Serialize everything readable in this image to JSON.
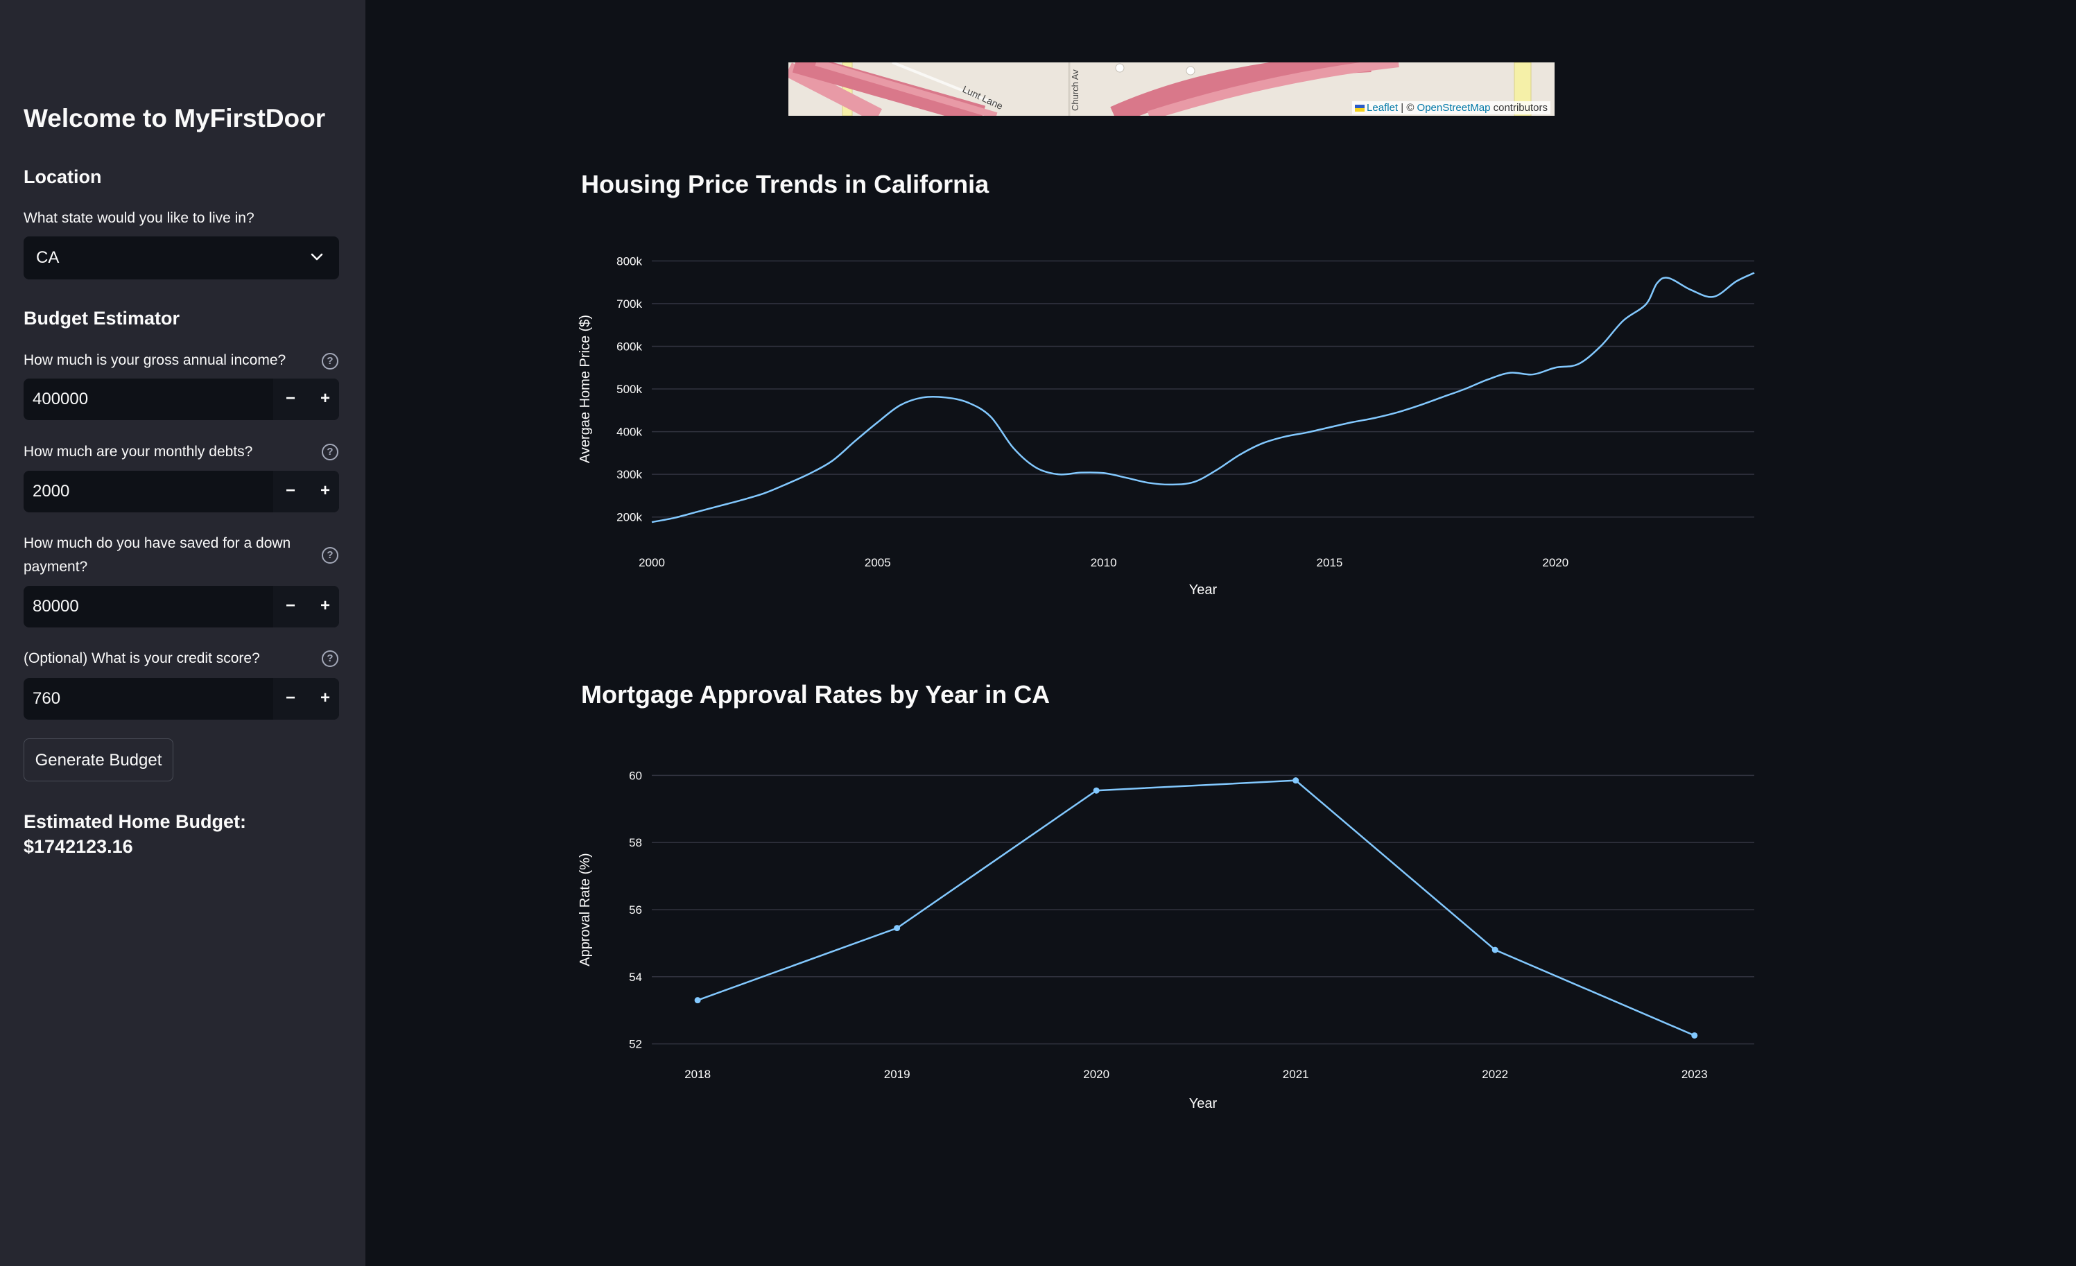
{
  "sidebar": {
    "title": "Welcome to MyFirstDoor",
    "location_heading": "Location",
    "state_label": "What state would you like to live in?",
    "state_value": "CA",
    "budget_heading": "Budget Estimator",
    "income_label": "How much is your gross annual income?",
    "income_value": "400000",
    "debts_label": "How much are your monthly debts?",
    "debts_value": "2000",
    "down_label": "How much do you have saved for a down payment?",
    "down_value": "80000",
    "credit_label": "(Optional) What is your credit score?",
    "credit_value": "760",
    "minus_label": "−",
    "plus_label": "+",
    "help_glyph": "?",
    "generate_label": "Generate Budget",
    "budget_result": "Estimated Home Budget: $1742123.16"
  },
  "map": {
    "street_1": "Lunt Lane",
    "street_2": "Church Av",
    "attrib_leaflet": "Leaflet",
    "attrib_sep": " | © ",
    "attrib_osm": "OpenStreetMap",
    "attrib_contrib": " contributors"
  },
  "colors": {
    "line": "#83c9ff",
    "grid": "#31333f",
    "sidebar_bg": "#262730",
    "main_bg": "#0e1117"
  },
  "chart_data": [
    {
      "type": "line",
      "title": "Housing Price Trends in California",
      "xlabel": "Year",
      "ylabel": "Avergae Home Price ($)",
      "xlim": [
        2000,
        2024.4
      ],
      "ylim": [
        180000,
        820000
      ],
      "x_ticks": [
        2000,
        2005,
        2010,
        2015,
        2020
      ],
      "y_ticks": [
        200000,
        300000,
        400000,
        500000,
        600000,
        700000,
        800000
      ],
      "y_tick_labels": [
        "200k",
        "300k",
        "400k",
        "500k",
        "600k",
        "700k",
        "800k"
      ],
      "x": [
        2000.0,
        2000.5,
        2001.0,
        2001.5,
        2002.0,
        2002.5,
        2003.0,
        2003.5,
        2004.0,
        2004.5,
        2005.0,
        2005.5,
        2006.0,
        2006.5,
        2007.0,
        2007.5,
        2008.0,
        2008.5,
        2009.0,
        2009.5,
        2010.0,
        2010.5,
        2011.0,
        2011.5,
        2012.0,
        2012.5,
        2013.0,
        2013.5,
        2014.0,
        2014.5,
        2015.0,
        2015.5,
        2016.0,
        2016.5,
        2017.0,
        2017.5,
        2018.0,
        2018.5,
        2019.0,
        2019.5,
        2020.0,
        2020.5,
        2021.0,
        2021.5,
        2022.0,
        2022.25,
        2022.5,
        2023.0,
        2023.5,
        2024.0,
        2024.4
      ],
      "values": [
        188000,
        198000,
        212000,
        226000,
        240000,
        256000,
        278000,
        302000,
        332000,
        378000,
        422000,
        462000,
        480000,
        480000,
        468000,
        435000,
        362000,
        316000,
        300000,
        304000,
        303000,
        292000,
        280000,
        276000,
        282000,
        310000,
        345000,
        372000,
        388000,
        398000,
        410000,
        422000,
        432000,
        445000,
        462000,
        481000,
        500000,
        522000,
        538000,
        534000,
        550000,
        558000,
        600000,
        660000,
        698000,
        748000,
        760000,
        732000,
        716000,
        752000,
        772000
      ]
    },
    {
      "type": "line",
      "title": "Mortgage Approval Rates by Year in CA",
      "xlabel": "Year",
      "ylabel": "Approval Rate (%)",
      "xlim": [
        2017.77,
        2023.3
      ],
      "ylim": [
        51.95,
        60.05
      ],
      "x_ticks": [
        2018,
        2019,
        2020,
        2021,
        2022,
        2023
      ],
      "y_ticks": [
        52,
        54,
        56,
        58,
        60
      ],
      "x": [
        2018,
        2019,
        2020,
        2021,
        2022,
        2023
      ],
      "values": [
        53.3,
        55.45,
        59.55,
        59.85,
        54.8,
        52.25
      ],
      "markers": true
    }
  ]
}
